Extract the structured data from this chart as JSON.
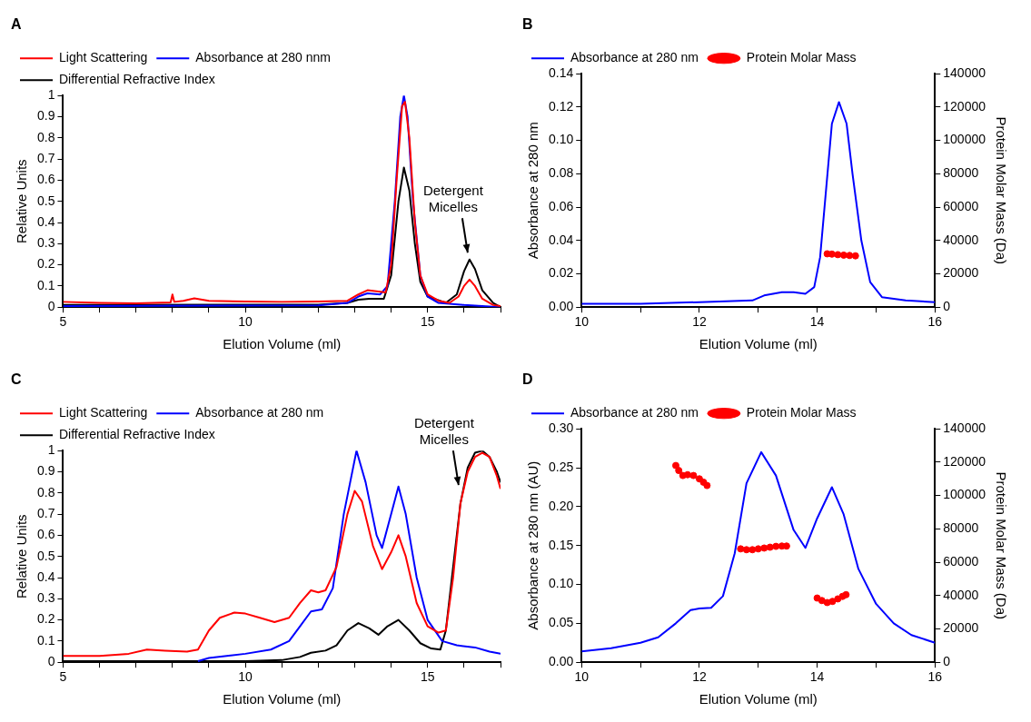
{
  "chart_data": [
    {
      "type": "line",
      "title": "A",
      "xlabel": "Elution Volume (ml)",
      "ylabel": "Relative Units",
      "xlim": [
        5,
        17
      ],
      "xticks": [
        5,
        {
          "value": 6,
          "label": null
        },
        {
          "value": 7,
          "label": null
        },
        {
          "value": 8,
          "label": null
        },
        {
          "value": 9,
          "label": null
        },
        10,
        {
          "value": 11,
          "label": null
        },
        {
          "value": 12,
          "label": null
        },
        {
          "value": 13,
          "label": null
        },
        {
          "value": 14,
          "label": null
        },
        15,
        {
          "value": 16,
          "label": null
        },
        {
          "value": 17,
          "label": null
        }
      ],
      "ylim": [
        0,
        1
      ],
      "yticks": [
        0,
        0.1,
        0.2,
        0.3,
        0.4,
        0.5,
        0.6,
        0.7,
        0.8,
        0.9,
        1
      ],
      "legend": "top left",
      "annotations": [
        {
          "text": "Detergent\nMicelles",
          "x": 16.15,
          "y": 0.24
        }
      ],
      "series": [
        {
          "name": "Light Scattering",
          "color": "#ff0000",
          "x": [
            5,
            6,
            7,
            7.95,
            8.0,
            8.05,
            8.3,
            8.6,
            9.0,
            10,
            11,
            12,
            12.8,
            13.1,
            13.35,
            13.6,
            13.85,
            14.0,
            14.15,
            14.3,
            14.38,
            14.5,
            14.65,
            14.8,
            15.0,
            15.3,
            15.6,
            15.85,
            16.0,
            16.15,
            16.3,
            16.5,
            16.8,
            17
          ],
          "values": [
            0.025,
            0.02,
            0.018,
            0.022,
            0.06,
            0.025,
            0.03,
            0.042,
            0.03,
            0.027,
            0.025,
            0.027,
            0.03,
            0.06,
            0.08,
            0.075,
            0.07,
            0.2,
            0.6,
            0.95,
            0.97,
            0.8,
            0.4,
            0.15,
            0.06,
            0.03,
            0.02,
            0.05,
            0.1,
            0.13,
            0.1,
            0.04,
            0.01,
            0.005
          ]
        },
        {
          "name": "Absorbance at 280 nnm",
          "color": "#0000ff",
          "x": [
            5,
            12,
            12.8,
            13.1,
            13.35,
            13.7,
            13.9,
            14.1,
            14.25,
            14.35,
            14.45,
            14.6,
            14.8,
            15.0,
            15.3,
            16,
            17
          ],
          "values": [
            0.005,
            0.008,
            0.02,
            0.05,
            0.065,
            0.06,
            0.1,
            0.5,
            0.9,
            1.0,
            0.9,
            0.5,
            0.15,
            0.05,
            0.02,
            0.01,
            0
          ]
        },
        {
          "name": "Differential Refractive Index",
          "color": "#000000",
          "x": [
            5,
            12,
            12.8,
            13.1,
            13.4,
            13.8,
            14.0,
            14.2,
            14.35,
            14.5,
            14.65,
            14.8,
            15.0,
            15.5,
            15.8,
            16.0,
            16.15,
            16.3,
            16.5,
            16.8,
            17
          ],
          "values": [
            0.01,
            0.012,
            0.02,
            0.035,
            0.04,
            0.04,
            0.15,
            0.5,
            0.66,
            0.55,
            0.3,
            0.12,
            0.05,
            0.02,
            0.06,
            0.17,
            0.225,
            0.18,
            0.08,
            0.02,
            0
          ]
        }
      ]
    },
    {
      "type": "line",
      "title": "B",
      "xlabel": "Elution Volume (ml)",
      "ylabel": "Absorbance at 280 nm",
      "y2label": "Protein Molar Mass (Da)",
      "xlim": [
        10,
        16
      ],
      "xticks": [
        10,
        {
          "value": 11,
          "label": null
        },
        12,
        {
          "value": 13,
          "label": null
        },
        14,
        {
          "value": 15,
          "label": null
        },
        16
      ],
      "ylim": [
        0,
        0.14
      ],
      "yticks": [
        {
          "value": 0,
          "label": "0.00"
        },
        {
          "value": 0.02,
          "label": "0.02"
        },
        {
          "value": 0.04,
          "label": "0.04"
        },
        {
          "value": 0.06,
          "label": "0.06"
        },
        {
          "value": 0.08,
          "label": "0.08"
        },
        {
          "value": 0.1,
          "label": "0.10"
        },
        {
          "value": 0.12,
          "label": "0.12"
        },
        {
          "value": 0.14,
          "label": "0.14"
        }
      ],
      "y2lim": [
        0,
        140000
      ],
      "y2ticks": [
        0,
        20000,
        40000,
        60000,
        80000,
        100000,
        120000,
        140000
      ],
      "legend": "top left",
      "series": [
        {
          "name": "Absorbance at 280 nm",
          "color": "#0000ff",
          "x": [
            10,
            11,
            12,
            12.9,
            13.1,
            13.4,
            13.6,
            13.8,
            13.95,
            14.05,
            14.15,
            14.25,
            14.37,
            14.5,
            14.6,
            14.75,
            14.9,
            15.1,
            15.5,
            16
          ],
          "values": [
            0.002,
            0.002,
            0.003,
            0.004,
            0.007,
            0.009,
            0.009,
            0.008,
            0.012,
            0.03,
            0.07,
            0.11,
            0.123,
            0.11,
            0.08,
            0.04,
            0.015,
            0.006,
            0.004,
            0.003
          ]
        },
        {
          "name": "Protein Molar Mass",
          "type": "scatter",
          "marker": "circle",
          "axis": "y2",
          "color": "#ff0000",
          "x": [
            14.17,
            14.25,
            14.35,
            14.45,
            14.55,
            14.65
          ],
          "values": [
            32000,
            31800,
            31500,
            31200,
            31000,
            30800
          ]
        }
      ]
    },
    {
      "type": "line",
      "title": "C",
      "xlabel": "Elution Volume (ml)",
      "ylabel": "Relative Units",
      "xlim": [
        5,
        17
      ],
      "xticks": [
        5,
        {
          "value": 6,
          "label": null
        },
        {
          "value": 7,
          "label": null
        },
        {
          "value": 8,
          "label": null
        },
        {
          "value": 9,
          "label": null
        },
        10,
        {
          "value": 11,
          "label": null
        },
        {
          "value": 12,
          "label": null
        },
        {
          "value": 13,
          "label": null
        },
        {
          "value": 14,
          "label": null
        },
        15,
        {
          "value": 16,
          "label": null
        },
        {
          "value": 17,
          "label": null
        }
      ],
      "ylim": [
        0,
        1
      ],
      "yticks": [
        0,
        0.1,
        0.2,
        0.3,
        0.4,
        0.5,
        0.6,
        0.7,
        0.8,
        0.9,
        1
      ],
      "legend": "top left",
      "annotations": [
        {
          "text": "Detergent\nMicelles",
          "x": 15.9,
          "y": 0.82
        }
      ],
      "series": [
        {
          "name": "Light Scattering",
          "color": "#ff0000",
          "x": [
            5,
            6,
            6.8,
            7.3,
            7.8,
            8.4,
            8.7,
            9.0,
            9.3,
            9.7,
            10.0,
            10.4,
            10.8,
            11.2,
            11.5,
            11.8,
            12.0,
            12.2,
            12.5,
            12.8,
            13.0,
            13.2,
            13.5,
            13.75,
            14.0,
            14.2,
            14.4,
            14.7,
            15.0,
            15.3,
            15.5,
            15.7,
            15.9,
            16.1,
            16.3,
            16.5,
            16.7,
            16.9,
            17
          ],
          "values": [
            0.03,
            0.03,
            0.04,
            0.06,
            0.055,
            0.05,
            0.06,
            0.15,
            0.21,
            0.235,
            0.23,
            0.21,
            0.19,
            0.21,
            0.28,
            0.34,
            0.33,
            0.34,
            0.45,
            0.7,
            0.81,
            0.76,
            0.55,
            0.44,
            0.52,
            0.6,
            0.5,
            0.28,
            0.17,
            0.14,
            0.15,
            0.4,
            0.75,
            0.9,
            0.97,
            0.99,
            0.97,
            0.88,
            0.82
          ]
        },
        {
          "name": "Absorbance at 280 nm",
          "color": "#0000ff",
          "x": [
            8.7,
            9.0,
            10,
            10.7,
            11.2,
            11.5,
            11.8,
            12.1,
            12.4,
            12.7,
            13.05,
            13.3,
            13.6,
            13.75,
            14.0,
            14.2,
            14.4,
            14.7,
            15.0,
            15.4,
            15.8,
            16.3,
            16.7,
            17
          ],
          "values": [
            0.005,
            0.02,
            0.04,
            0.06,
            0.1,
            0.17,
            0.24,
            0.25,
            0.35,
            0.7,
            1.0,
            0.85,
            0.6,
            0.54,
            0.7,
            0.83,
            0.7,
            0.4,
            0.2,
            0.1,
            0.08,
            0.07,
            0.05,
            0.04
          ]
        },
        {
          "name": "Differential Refractive Index",
          "color": "#000000",
          "x": [
            5,
            10,
            11,
            11.5,
            11.8,
            12.2,
            12.5,
            12.8,
            13.1,
            13.4,
            13.65,
            13.9,
            14.2,
            14.5,
            14.8,
            15.1,
            15.35,
            15.5,
            15.7,
            15.9,
            16.1,
            16.3,
            16.5,
            16.7,
            16.9,
            17
          ],
          "values": [
            0.005,
            0.005,
            0.01,
            0.025,
            0.045,
            0.055,
            0.08,
            0.15,
            0.185,
            0.16,
            0.13,
            0.17,
            0.2,
            0.15,
            0.09,
            0.065,
            0.06,
            0.15,
            0.45,
            0.75,
            0.92,
            0.99,
            1.0,
            0.97,
            0.9,
            0.85
          ]
        }
      ]
    },
    {
      "type": "line",
      "title": "D",
      "xlabel": "Elution Volume (ml)",
      "ylabel": "Absorbance at 280 nm (AU)",
      "y2label": "Protein Molar Mass (Da)",
      "xlim": [
        10,
        16
      ],
      "xticks": [
        10,
        {
          "value": 11,
          "label": null
        },
        12,
        {
          "value": 13,
          "label": null
        },
        14,
        {
          "value": 15,
          "label": null
        },
        16
      ],
      "ylim": [
        0,
        0.3
      ],
      "yticks": [
        {
          "value": 0,
          "label": "0.00"
        },
        {
          "value": 0.05,
          "label": "0.05"
        },
        {
          "value": 0.1,
          "label": "0.10"
        },
        {
          "value": 0.15,
          "label": "0.15"
        },
        {
          "value": 0.2,
          "label": "0.20"
        },
        {
          "value": 0.25,
          "label": "0.25"
        },
        {
          "value": 0.3,
          "label": "0.30"
        }
      ],
      "y2lim": [
        0,
        140000
      ],
      "y2ticks": [
        0,
        20000,
        40000,
        60000,
        80000,
        100000,
        120000,
        140000
      ],
      "legend": "top left",
      "series": [
        {
          "name": "Absorbance at 280 nm",
          "color": "#0000ff",
          "x": [
            10,
            10.5,
            11.0,
            11.3,
            11.6,
            11.85,
            12.0,
            12.2,
            12.4,
            12.6,
            12.8,
            13.05,
            13.3,
            13.6,
            13.8,
            14.0,
            14.25,
            14.45,
            14.7,
            15.0,
            15.3,
            15.6,
            16
          ],
          "values": [
            0.014,
            0.018,
            0.025,
            0.032,
            0.05,
            0.067,
            0.069,
            0.07,
            0.085,
            0.14,
            0.23,
            0.27,
            0.24,
            0.17,
            0.147,
            0.185,
            0.225,
            0.19,
            0.12,
            0.075,
            0.05,
            0.035,
            0.025
          ]
        },
        {
          "name": "Protein Molar Mass",
          "type": "scatter",
          "marker": "circle",
          "axis": "y2",
          "color": "#ff0000",
          "x": [
            11.6,
            11.65,
            11.72,
            11.8,
            11.9,
            12.0,
            12.07,
            12.13,
            12.7,
            12.8,
            12.9,
            13.0,
            13.1,
            13.2,
            13.3,
            13.4,
            13.48,
            14.0,
            14.08,
            14.17,
            14.26,
            14.35,
            14.43,
            14.49
          ],
          "values": [
            118000,
            115000,
            112000,
            112500,
            112000,
            110000,
            108000,
            106000,
            68000,
            67500,
            67500,
            68000,
            68500,
            69000,
            69500,
            69700,
            69700,
            38500,
            37000,
            35800,
            36500,
            38000,
            39500,
            40500
          ]
        }
      ]
    }
  ]
}
